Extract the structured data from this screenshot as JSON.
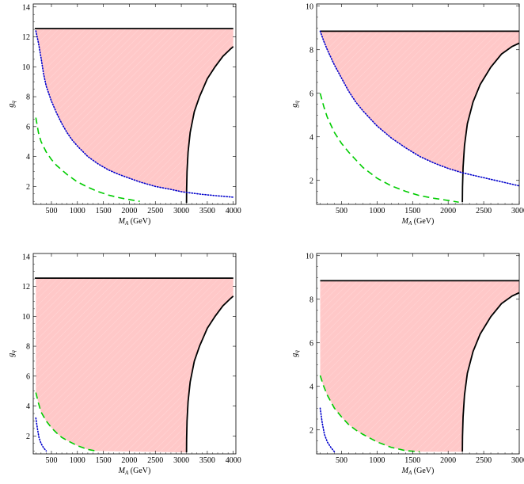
{
  "chart_data": [
    {
      "id": "top-left",
      "type": "line",
      "xlabel_symbol": "M",
      "xlabel_sub": "A",
      "xlabel_unit": " (GeV)",
      "ylabel_symbol": "g",
      "ylabel_sub": "q",
      "xlim": [
        150,
        4050
      ],
      "ylim": [
        0.8,
        14.2
      ],
      "xticks": [
        500,
        1000,
        1500,
        2000,
        2500,
        3000,
        3500,
        4000
      ],
      "yticks": [
        2,
        4,
        6,
        8,
        10,
        12,
        14
      ],
      "grid": false,
      "colors": {
        "shade": "#ffc8c8",
        "black": "#000000",
        "blue": "#0000cc",
        "green": "#00cc00"
      },
      "series": [
        {
          "style": "black-solid",
          "x": [
            180,
            4000
          ],
          "y": [
            12.55,
            12.55
          ]
        },
        {
          "style": "black-solid",
          "x": [
            3100,
            3102,
            3110,
            3130,
            3170,
            3250,
            3350,
            3500,
            3650,
            3800,
            3950,
            4000
          ],
          "y": [
            0.9,
            1.8,
            3.0,
            4.3,
            5.6,
            7.0,
            8.0,
            9.2,
            10.0,
            10.7,
            11.2,
            11.35
          ]
        },
        {
          "style": "blue-dotted",
          "x": [
            200,
            250,
            300,
            350,
            400,
            500,
            600,
            700,
            800,
            900,
            1000,
            1200,
            1400,
            1600,
            1800,
            2000,
            2200,
            2500,
            2800,
            3000,
            3100,
            3400,
            3700,
            4000
          ],
          "y": [
            12.4,
            11.6,
            10.6,
            9.5,
            8.7,
            7.7,
            6.9,
            6.2,
            5.6,
            5.1,
            4.7,
            4.0,
            3.5,
            3.1,
            2.8,
            2.55,
            2.3,
            2.0,
            1.8,
            1.65,
            1.6,
            1.47,
            1.37,
            1.28
          ]
        },
        {
          "style": "green-dashed",
          "x": [
            200,
            250,
            300,
            400,
            500,
            600,
            700,
            800,
            1000,
            1200,
            1400,
            1600,
            1800,
            2000,
            2200
          ],
          "y": [
            6.6,
            5.6,
            5.0,
            4.3,
            3.8,
            3.4,
            3.1,
            2.8,
            2.3,
            1.95,
            1.65,
            1.42,
            1.25,
            1.12,
            1.0
          ]
        }
      ],
      "shade_left": [
        200,
        250,
        300,
        350,
        400,
        500,
        600,
        700,
        800,
        900,
        1000,
        1200,
        1400,
        1600,
        1800,
        2000,
        2200,
        2500,
        2800,
        3000,
        3100
      ],
      "shade_left_y": [
        12.4,
        11.6,
        10.6,
        9.5,
        8.7,
        7.7,
        6.9,
        6.2,
        5.6,
        5.1,
        4.7,
        4.0,
        3.5,
        3.1,
        2.8,
        2.55,
        2.3,
        2.0,
        1.8,
        1.65,
        1.6
      ]
    },
    {
      "id": "top-right",
      "type": "line",
      "xlabel_symbol": "M",
      "xlabel_sub": "A",
      "xlabel_unit": " (GeV)",
      "ylabel_symbol": "g",
      "ylabel_sub": "q",
      "xlim": [
        150,
        3000
      ],
      "ylim": [
        0.9,
        10.1
      ],
      "xticks": [
        500,
        1000,
        1500,
        2000,
        2500,
        3000
      ],
      "yticks": [
        2,
        4,
        6,
        8,
        10
      ],
      "grid": false,
      "colors": {
        "shade": "#ffc8c8",
        "black": "#000000",
        "blue": "#0000cc",
        "green": "#00cc00"
      },
      "series": [
        {
          "style": "black-solid",
          "x": [
            200,
            3000
          ],
          "y": [
            8.85,
            8.85
          ]
        },
        {
          "style": "black-solid",
          "x": [
            2200,
            2202,
            2210,
            2230,
            2270,
            2350,
            2450,
            2600,
            2750,
            2900,
            3000
          ],
          "y": [
            1.0,
            1.7,
            2.6,
            3.6,
            4.6,
            5.6,
            6.4,
            7.2,
            7.8,
            8.15,
            8.3
          ]
        },
        {
          "style": "blue-dotted",
          "x": [
            200,
            250,
            300,
            400,
            500,
            600,
            700,
            800,
            1000,
            1200,
            1400,
            1600,
            1800,
            2000,
            2200,
            2400,
            2600,
            2800,
            3000
          ],
          "y": [
            8.85,
            8.4,
            8.0,
            7.3,
            6.7,
            6.1,
            5.6,
            5.2,
            4.5,
            3.95,
            3.5,
            3.1,
            2.8,
            2.55,
            2.35,
            2.2,
            2.05,
            1.9,
            1.75
          ]
        },
        {
          "style": "green-dashed",
          "x": [
            200,
            250,
            300,
            400,
            500,
            600,
            800,
            1000,
            1200,
            1400,
            1600,
            1800,
            2000,
            2150
          ],
          "y": [
            6.0,
            5.4,
            4.9,
            4.2,
            3.7,
            3.3,
            2.6,
            2.1,
            1.75,
            1.5,
            1.3,
            1.18,
            1.08,
            1.0
          ]
        }
      ],
      "shade_left": [
        200,
        250,
        300,
        400,
        500,
        600,
        700,
        800,
        1000,
        1200,
        1400,
        1600,
        1800,
        2000,
        2200
      ],
      "shade_left_y": [
        8.85,
        8.4,
        8.0,
        7.3,
        6.7,
        6.1,
        5.6,
        5.2,
        4.5,
        3.95,
        3.5,
        3.1,
        2.8,
        2.55,
        2.35
      ]
    },
    {
      "id": "bottom-left",
      "type": "line",
      "xlabel_symbol": "M",
      "xlabel_sub": "A",
      "xlabel_unit": " (GeV)",
      "ylabel_symbol": "g",
      "ylabel_sub": "q",
      "xlim": [
        150,
        4050
      ],
      "ylim": [
        0.8,
        14.2
      ],
      "xticks": [
        500,
        1000,
        1500,
        2000,
        2500,
        3000,
        3500,
        4000
      ],
      "yticks": [
        2,
        4,
        6,
        8,
        10,
        12,
        14
      ],
      "grid": false,
      "colors": {
        "shade": "#ffc8c8",
        "black": "#000000",
        "blue": "#0000cc",
        "green": "#00cc00"
      },
      "series": [
        {
          "style": "black-solid",
          "x": [
            180,
            4000
          ],
          "y": [
            12.55,
            12.55
          ]
        },
        {
          "style": "black-solid",
          "x": [
            3100,
            3102,
            3110,
            3130,
            3170,
            3250,
            3350,
            3500,
            3650,
            3800,
            3950,
            4000
          ],
          "y": [
            0.9,
            1.8,
            3.0,
            4.3,
            5.6,
            7.0,
            8.0,
            9.2,
            10.0,
            10.7,
            11.2,
            11.35
          ]
        },
        {
          "style": "blue-dotted",
          "x": [
            200,
            230,
            260,
            300,
            350,
            400
          ],
          "y": [
            3.2,
            2.5,
            1.9,
            1.5,
            1.2,
            1.0
          ]
        },
        {
          "style": "green-dashed",
          "x": [
            200,
            250,
            300,
            400,
            500,
            600,
            700,
            800,
            1000,
            1200,
            1350
          ],
          "y": [
            4.9,
            4.2,
            3.6,
            3.0,
            2.55,
            2.2,
            1.9,
            1.7,
            1.35,
            1.1,
            1.0
          ]
        }
      ],
      "shade_left": [
        200,
        250,
        300,
        400,
        500,
        600,
        700,
        800,
        1000,
        1200,
        1350
      ],
      "shade_left_y": [
        4.9,
        4.2,
        3.6,
        3.0,
        2.55,
        2.2,
        1.9,
        1.7,
        1.35,
        1.1,
        1.0
      ]
    },
    {
      "id": "bottom-right",
      "type": "line",
      "xlabel_symbol": "M",
      "xlabel_sub": "A",
      "xlabel_unit": " (GeV)",
      "ylabel_symbol": "g",
      "ylabel_sub": "q",
      "xlim": [
        150,
        3000
      ],
      "ylim": [
        0.9,
        10.1
      ],
      "xticks": [
        500,
        1000,
        1500,
        2000,
        2500,
        3000
      ],
      "yticks": [
        2,
        4,
        6,
        8,
        10
      ],
      "grid": false,
      "colors": {
        "shade": "#ffc8c8",
        "black": "#000000",
        "blue": "#0000cc",
        "green": "#00cc00"
      },
      "series": [
        {
          "style": "black-solid",
          "x": [
            200,
            3000
          ],
          "y": [
            8.85,
            8.85
          ]
        },
        {
          "style": "black-solid",
          "x": [
            2200,
            2202,
            2210,
            2230,
            2270,
            2350,
            2450,
            2600,
            2750,
            2900,
            3000
          ],
          "y": [
            1.0,
            1.7,
            2.6,
            3.6,
            4.6,
            5.6,
            6.4,
            7.2,
            7.8,
            8.15,
            8.3
          ]
        },
        {
          "style": "blue-dotted",
          "x": [
            200,
            230,
            260,
            300,
            350,
            400
          ],
          "y": [
            3.0,
            2.3,
            1.8,
            1.45,
            1.2,
            1.0
          ]
        },
        {
          "style": "green-dashed",
          "x": [
            200,
            250,
            300,
            400,
            500,
            600,
            700,
            800,
            1000,
            1200,
            1400,
            1600
          ],
          "y": [
            4.5,
            4.0,
            3.6,
            3.0,
            2.6,
            2.25,
            2.0,
            1.8,
            1.45,
            1.2,
            1.05,
            1.0
          ]
        }
      ],
      "shade_left": [
        200,
        250,
        300,
        400,
        500,
        600,
        700,
        800,
        1000,
        1200,
        1400,
        1600
      ],
      "shade_left_y": [
        4.5,
        4.0,
        3.6,
        3.0,
        2.6,
        2.25,
        2.0,
        1.8,
        1.45,
        1.2,
        1.05,
        1.0
      ]
    }
  ]
}
